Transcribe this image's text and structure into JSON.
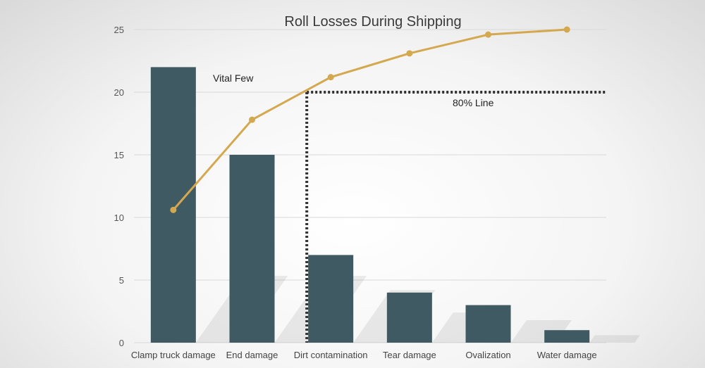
{
  "chart_data": {
    "type": "bar",
    "title": "Roll Losses During Shipping",
    "categories": [
      "Clamp truck damage",
      "End damage",
      "Dirt contamination",
      "Tear damage",
      "Ovalization",
      "Water damage"
    ],
    "series": [
      {
        "type": "bar",
        "values": [
          22,
          15,
          7,
          4,
          3,
          1
        ]
      },
      {
        "type": "line",
        "values": [
          10.6,
          17.8,
          21.2,
          23.1,
          24.6,
          25.0
        ]
      }
    ],
    "ylim": [
      0,
      25
    ],
    "yticks": [
      0,
      5,
      10,
      15,
      20,
      25
    ],
    "grid": true,
    "reference_line": {
      "y": 20,
      "start_category": "Dirt contamination",
      "label": "80% Line"
    },
    "annotations": [
      {
        "text": "Vital Few"
      }
    ],
    "colors": {
      "bar": "#3f5a62",
      "line": "#d4a84f",
      "grid": "#d9d9d9",
      "reference": "#333333"
    }
  }
}
